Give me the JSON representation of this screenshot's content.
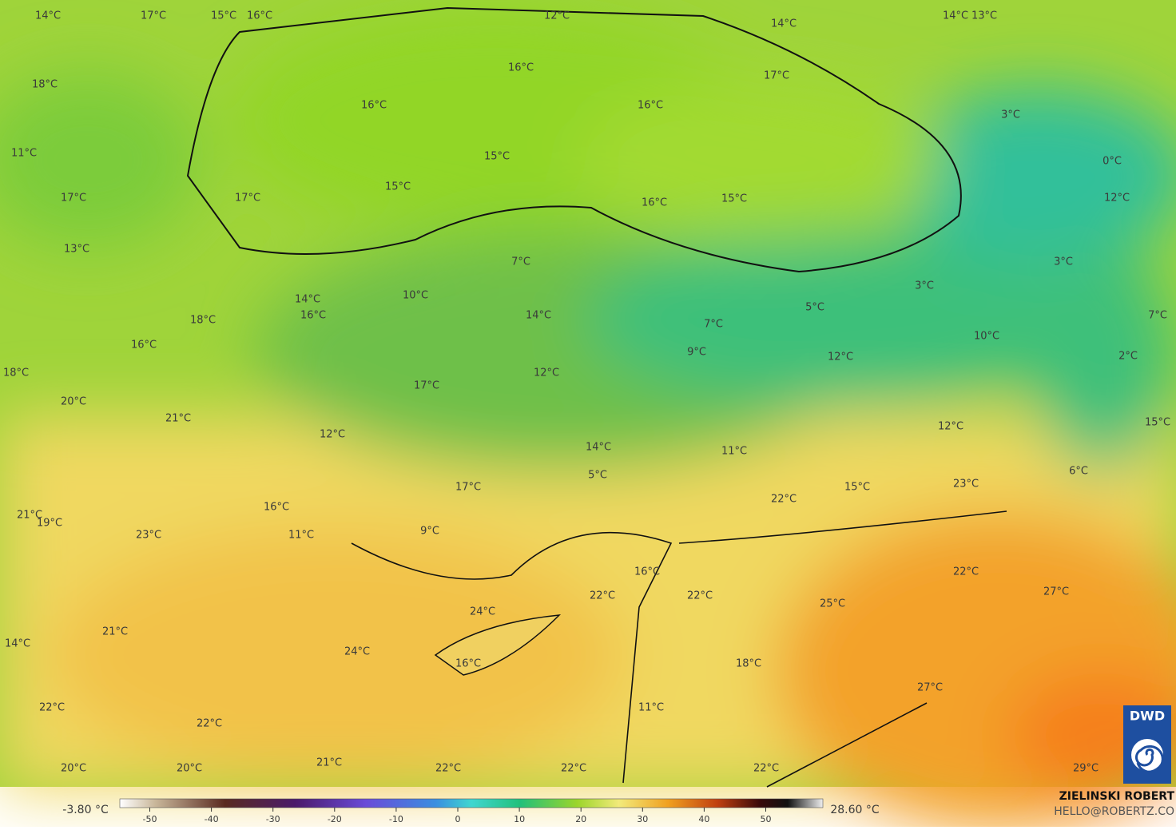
{
  "labels": [
    "14°C",
    "17°C",
    "15°C",
    "16°C",
    "12°C",
    "14°C",
    "13°C",
    "14°C",
    "16°C",
    "17°C",
    "18°C",
    "16°C",
    "16°C",
    "11°C",
    "15°C",
    "0°C",
    "3°C",
    "17°C",
    "17°C",
    "15°C",
    "16°C",
    "15°C",
    "12°C",
    "13°C",
    "7°C",
    "3°C",
    "3°C",
    "14°C",
    "16°C",
    "10°C",
    "5°C",
    "18°C",
    "14°C",
    "7°C",
    "7°C",
    "16°C",
    "10°C",
    "9°C",
    "12°C",
    "2°C",
    "18°C",
    "12°C",
    "17°C",
    "20°C",
    "21°C",
    "12°C",
    "15°C",
    "12°C",
    "14°C",
    "11°C",
    "5°C",
    "6°C",
    "17°C",
    "15°C",
    "23°C",
    "22°C",
    "16°C",
    "21°C",
    "19°C",
    "23°C",
    "11°C",
    "9°C",
    "16°C",
    "22°C",
    "22°C",
    "22°C",
    "27°C",
    "25°C",
    "24°C",
    "21°C",
    "14°C",
    "24°C",
    "16°C",
    "18°C",
    "27°C",
    "11°C",
    "22°C",
    "22°C",
    "21°C",
    "20°C",
    "20°C",
    "22°C",
    "22°C",
    "22°C",
    "29°C"
  ],
  "colorbar": {
    "min_label": "-3.80 °C",
    "max_label": "28.60 °C",
    "ticks": [
      -50,
      -40,
      -30,
      -20,
      -10,
      0,
      10,
      20,
      30,
      40,
      50
    ]
  },
  "credit": {
    "name": "ZIELINSKI ROBERT",
    "email": "HELLO@ROBERTZ.CO"
  },
  "logo": "DWD"
}
